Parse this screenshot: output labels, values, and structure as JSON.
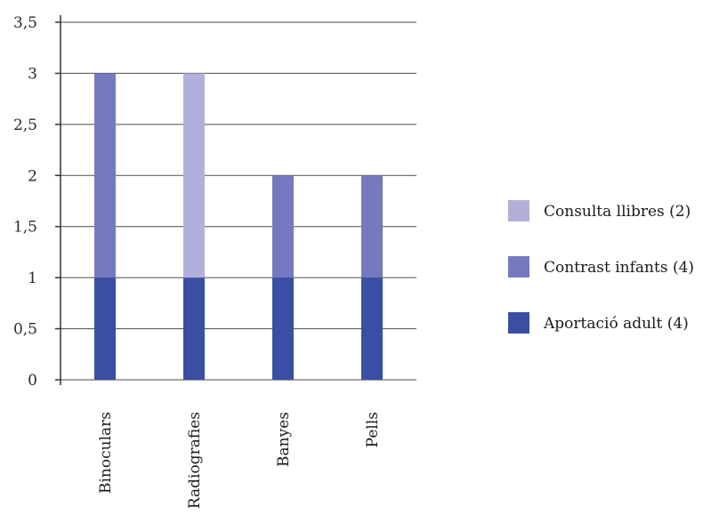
{
  "chart_data": {
    "type": "bar",
    "stacked": true,
    "categories": [
      "Binoculars",
      "Radiografies",
      "Banyes",
      "Pells"
    ],
    "series": [
      {
        "name": "Aportació adult (4)",
        "values": [
          1,
          1,
          1,
          1
        ],
        "color": "#3a4fa3"
      },
      {
        "name": "Contrast infants (4)",
        "values": [
          2,
          0,
          1,
          1
        ],
        "color": "#7579bd"
      },
      {
        "name": "Consulta llibres (2)",
        "values": [
          0,
          2,
          0,
          0
        ],
        "color": "#b0b0da"
      }
    ],
    "ylim": [
      0,
      3.5
    ],
    "yticks": [
      "0",
      "0,5",
      "1",
      "1,5",
      "2",
      "2,5",
      "3",
      "3,5"
    ],
    "ytick_values": [
      0,
      0.5,
      1,
      1.5,
      2,
      2.5,
      3,
      3.5
    ],
    "grid": true,
    "legend_position": "right",
    "legend_order": [
      "Consulta llibres (2)",
      "Contrast infants (4)",
      "Aportació adult (4)"
    ],
    "title": "",
    "xlabel": "",
    "ylabel": ""
  }
}
